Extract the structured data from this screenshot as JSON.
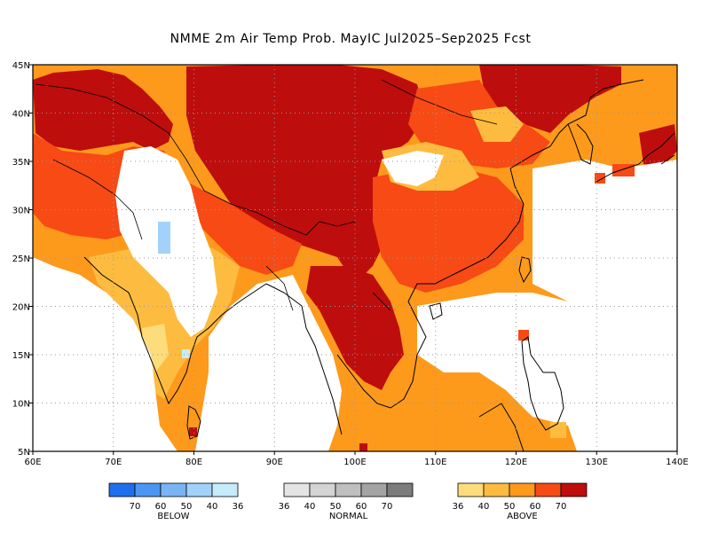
{
  "title": "NMME 2m Air Temp Prob. MayIC  Jul2025–Sep2025 Fcst",
  "map": {
    "lon_ticks": [
      "60E",
      "70E",
      "80E",
      "90E",
      "100E",
      "110E",
      "120E",
      "130E",
      "140E"
    ],
    "lat_ticks": [
      "45N",
      "40N",
      "35N",
      "30N",
      "25N",
      "20N",
      "15N",
      "10N",
      "5N"
    ],
    "extent": {
      "lon_min": 60,
      "lon_max": 140,
      "lat_min": 5,
      "lat_max": 45
    },
    "grid": true
  },
  "colors": {
    "below": [
      "#1e6ff0",
      "#4b96f3",
      "#7ab4f5",
      "#a2d2f9",
      "#c6ecfc"
    ],
    "normal": [
      "#e4e4e4",
      "#d4d4d4",
      "#bfbfbf",
      "#a4a4a4",
      "#7c7c7c"
    ],
    "above": [
      "#fddc7c",
      "#fdbc40",
      "#fd9a1c",
      "#f74a14",
      "#bd0d0d"
    ]
  },
  "legend": {
    "below": {
      "label": "BELOW",
      "ticks": [
        "70",
        "60",
        "50",
        "40",
        "36"
      ]
    },
    "normal": {
      "label": "NORMAL",
      "ticks": [
        "36",
        "40",
        "50",
        "60",
        "70"
      ]
    },
    "above": {
      "label": "ABOVE",
      "ticks": [
        "36",
        "40",
        "50",
        "60",
        "70"
      ]
    }
  }
}
